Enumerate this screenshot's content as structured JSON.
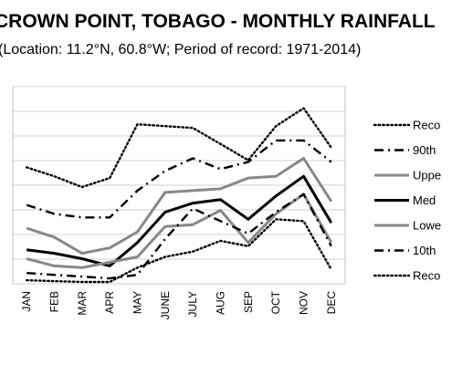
{
  "title": "CROWN POINT, TOBAGO - MONTHLY RAINFALL",
  "subtitle": "(Location: 11.2°N, 60.8°W; Period of record: 1971-2014)",
  "chart_data": {
    "type": "line",
    "title": "CROWN POINT, TOBAGO - MONTHLY RAINFALL",
    "subtitle": "(Location: 11.2°N, 60.8°W; Period of record: 1971-2014)",
    "categories": [
      "JAN",
      "FEB",
      "MAR",
      "APR",
      "MAY",
      "JUNE",
      "JULY",
      "AUG",
      "SEP",
      "OCT",
      "NOV",
      "DEC"
    ],
    "ylim": [
      0,
      11
    ],
    "y_gridlines": true,
    "y_tick_labels_visible": false,
    "legend_position": "right",
    "series": [
      {
        "name": "Record",
        "style": "dotted",
        "color": "#000000",
        "values": [
          6.5,
          6.0,
          5.4,
          5.9,
          8.9,
          8.8,
          8.7,
          7.8,
          6.9,
          8.8,
          9.8,
          7.6
        ]
      },
      {
        "name": "90th",
        "style": "dash-dot",
        "color": "#000000",
        "values": [
          4.4,
          3.9,
          3.7,
          3.7,
          5.2,
          6.3,
          7.0,
          6.4,
          6.8,
          8.0,
          8.0,
          6.8
        ]
      },
      {
        "name": "Upper",
        "style": "solid",
        "color": "#888888",
        "values": [
          3.1,
          2.6,
          1.7,
          2.0,
          2.9,
          5.1,
          5.2,
          5.3,
          5.9,
          6.0,
          7.0,
          4.6
        ]
      },
      {
        "name": "Median",
        "style": "solid",
        "color": "#000000",
        "values": [
          1.9,
          1.7,
          1.4,
          1.0,
          2.3,
          4.0,
          4.5,
          4.7,
          3.6,
          4.9,
          6.0,
          3.4
        ]
      },
      {
        "name": "Lower",
        "style": "solid",
        "color": "#888888",
        "values": [
          1.4,
          1.0,
          0.9,
          1.2,
          1.5,
          3.2,
          3.3,
          4.1,
          2.3,
          3.9,
          5.0,
          2.3
        ]
      },
      {
        "name": "10th",
        "style": "dash-dot",
        "color": "#000000",
        "values": [
          0.6,
          0.5,
          0.4,
          0.3,
          0.5,
          2.5,
          4.2,
          3.5,
          2.8,
          4.0,
          5.0,
          2.1
        ]
      },
      {
        "name": "Record",
        "style": "dotted",
        "color": "#000000",
        "values": [
          0.2,
          0.15,
          0.1,
          0.1,
          0.9,
          1.5,
          1.8,
          2.4,
          2.1,
          3.6,
          3.5,
          0.8
        ]
      }
    ]
  },
  "legend": [
    {
      "label": "Reco",
      "style": "dotted",
      "color": "#000000"
    },
    {
      "label": "90th",
      "style": "dash-dot",
      "color": "#000000"
    },
    {
      "label": "Uppe",
      "style": "solid",
      "color": "#888888"
    },
    {
      "label": "Med",
      "style": "solid",
      "color": "#000000"
    },
    {
      "label": "Lowe",
      "style": "solid",
      "color": "#888888"
    },
    {
      "label": "10th",
      "style": "dash-dot",
      "color": "#000000"
    },
    {
      "label": "Reco",
      "style": "dotted",
      "color": "#000000"
    }
  ]
}
